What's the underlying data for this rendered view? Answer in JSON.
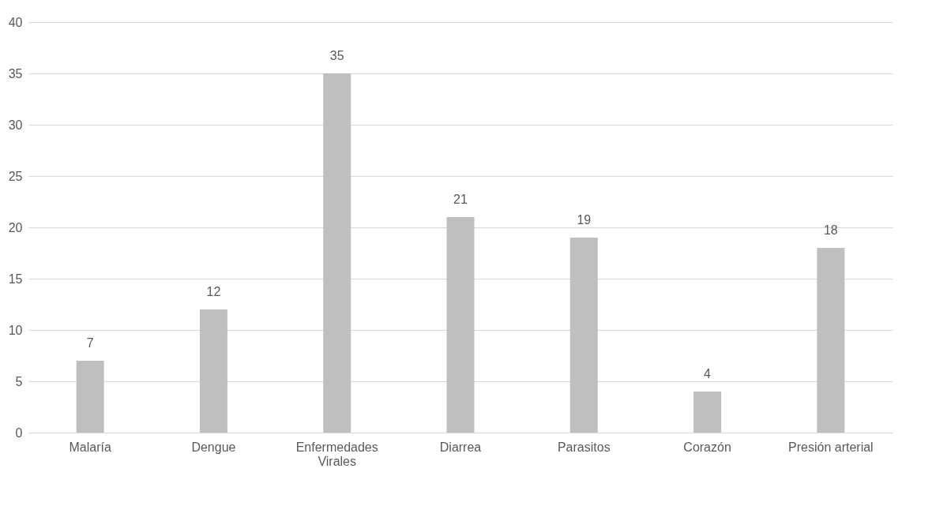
{
  "chart_data": {
    "type": "bar",
    "categories": [
      "Malaría",
      "Dengue",
      "Enfermedades Virales",
      "Diarrea",
      "Parasitos",
      "Corazón",
      "Presión arterial"
    ],
    "values": [
      7,
      12,
      35,
      21,
      19,
      4,
      18
    ],
    "color": "#bfbfbf",
    "ylim": [
      0,
      40
    ],
    "yticks": [
      0,
      5,
      10,
      15,
      20,
      25,
      30,
      35,
      40
    ],
    "grid": "y",
    "data_labels": true
  }
}
